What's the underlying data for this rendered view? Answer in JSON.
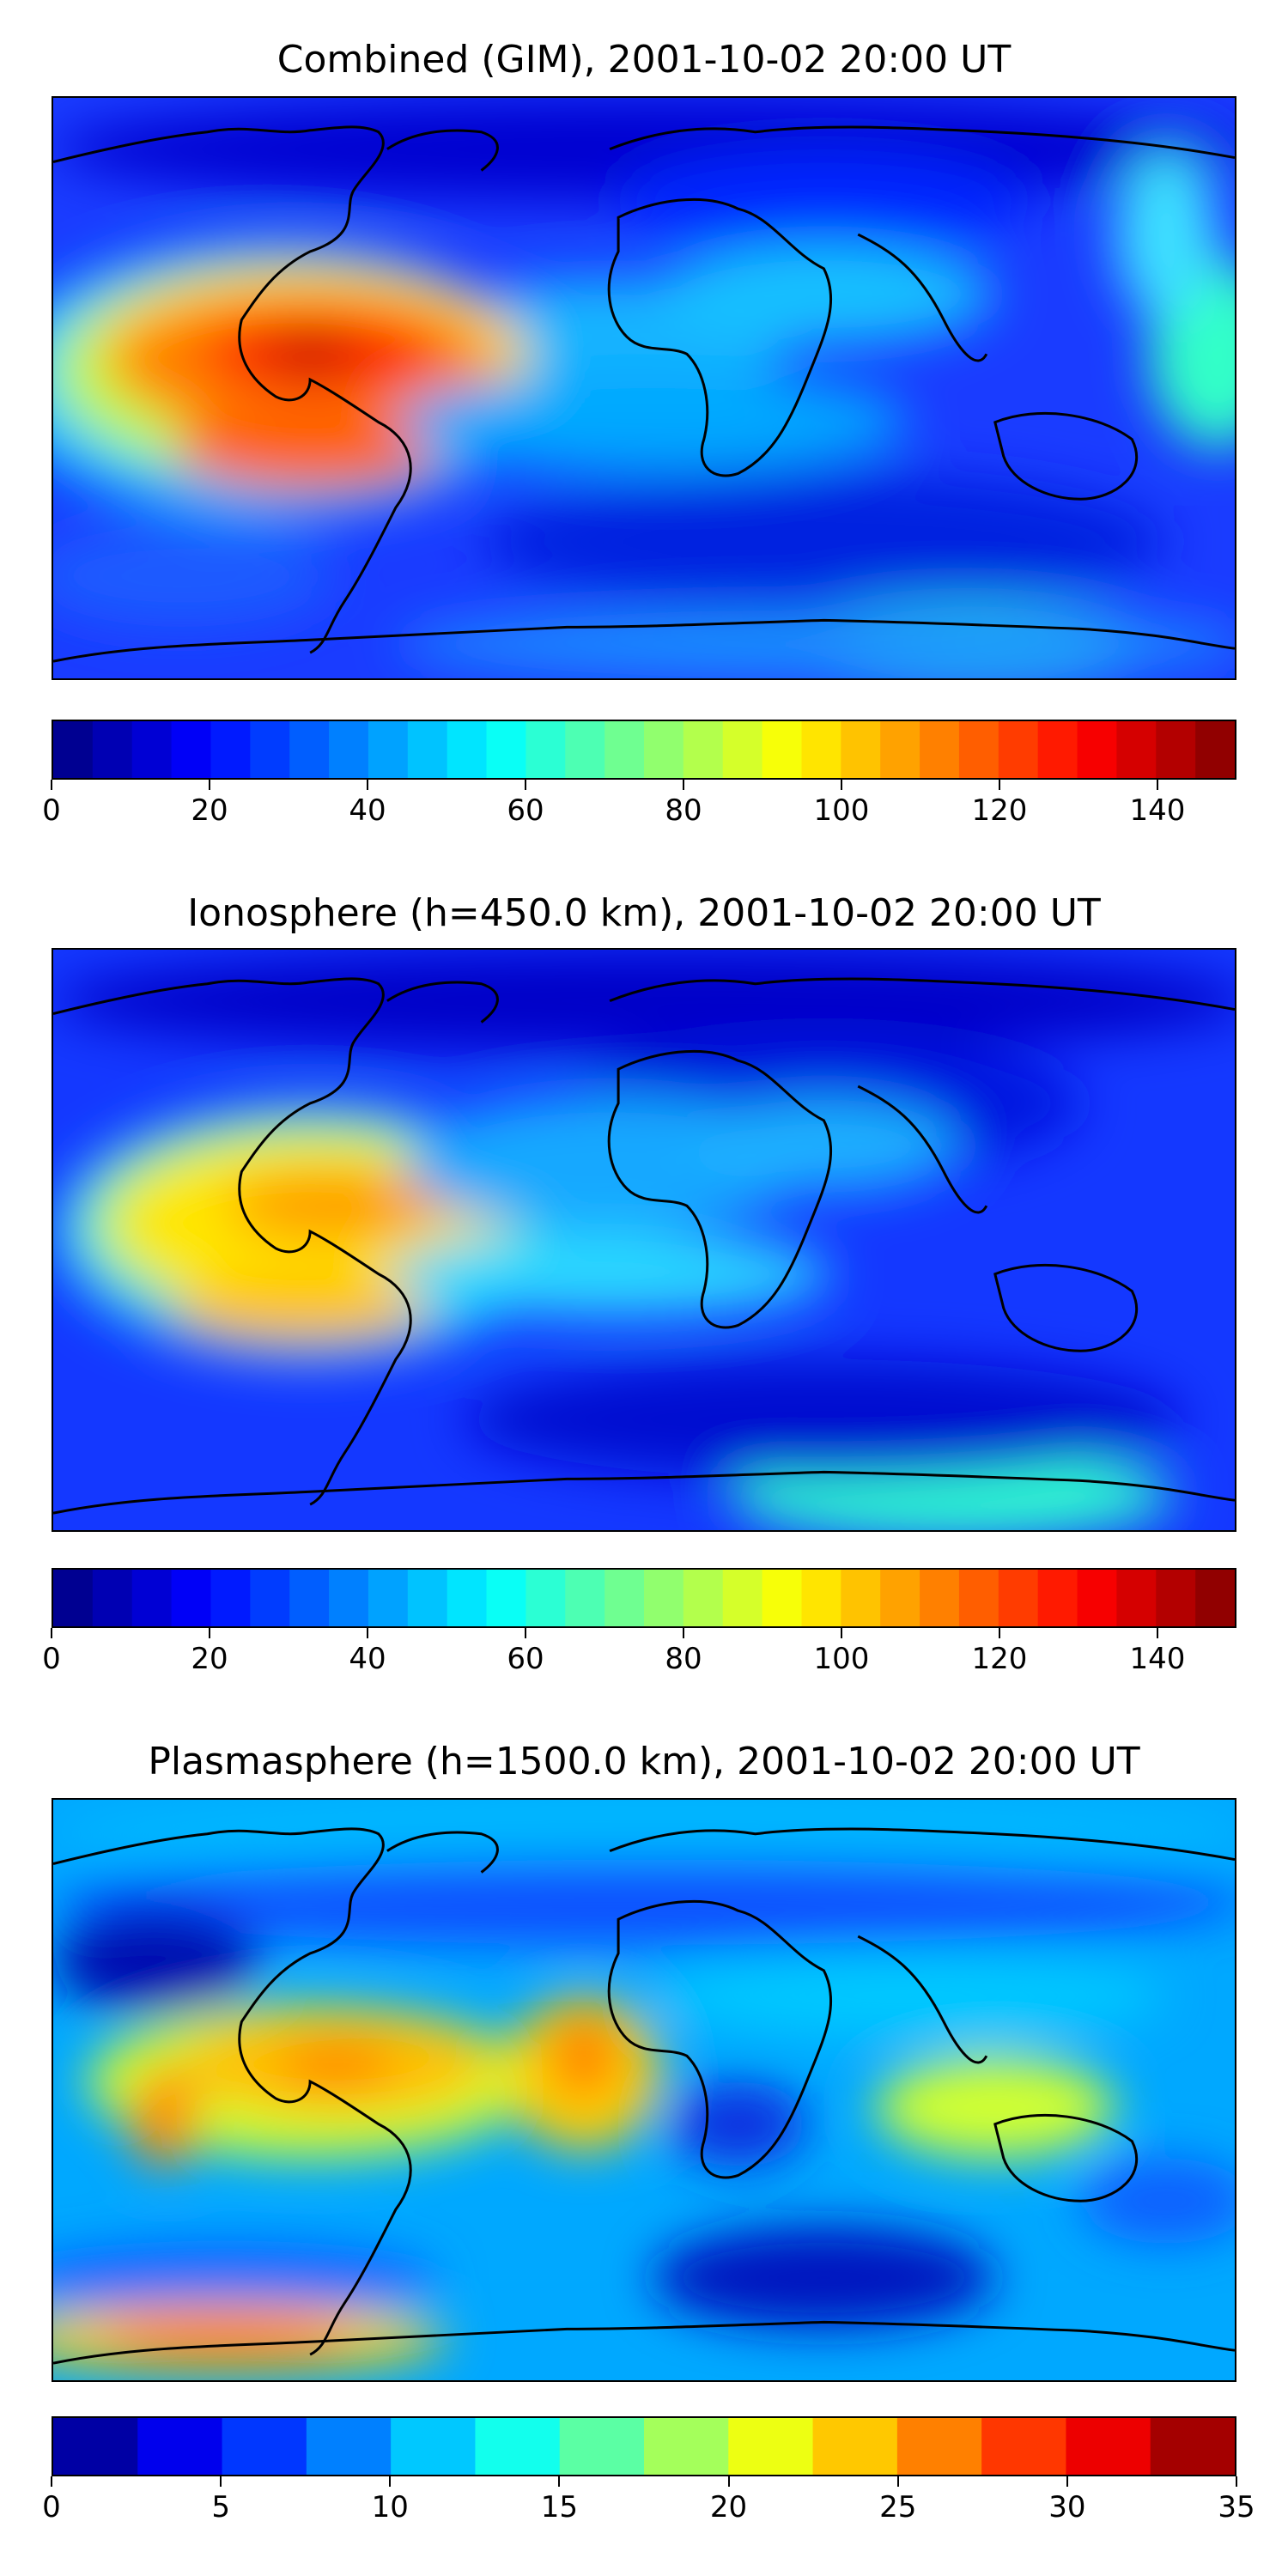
{
  "panels": [
    {
      "title": "Combined (GIM), 2001-10-02 20:00 UT",
      "colorbar": {
        "min": 0,
        "max": 150,
        "levels": 30,
        "ticks": [
          "0",
          "20",
          "40",
          "60",
          "80",
          "100",
          "120",
          "140"
        ]
      },
      "field": "combined"
    },
    {
      "title": "Ionosphere  (h=450.0 km), 2001-10-02 20:00 UT",
      "colorbar": {
        "min": 0,
        "max": 150,
        "levels": 30,
        "ticks": [
          "0",
          "20",
          "40",
          "60",
          "80",
          "100",
          "120",
          "140"
        ]
      },
      "field": "ionosphere"
    },
    {
      "title": "Plasmasphere (h=1500.0 km), 2001-10-02 20:00 UT",
      "colorbar": {
        "min": 0,
        "max": 35,
        "levels": 14,
        "ticks": [
          "0",
          "5",
          "10",
          "15",
          "20",
          "25",
          "30",
          "35"
        ]
      },
      "field": "plasmasphere"
    }
  ],
  "colormap": "jet"
}
